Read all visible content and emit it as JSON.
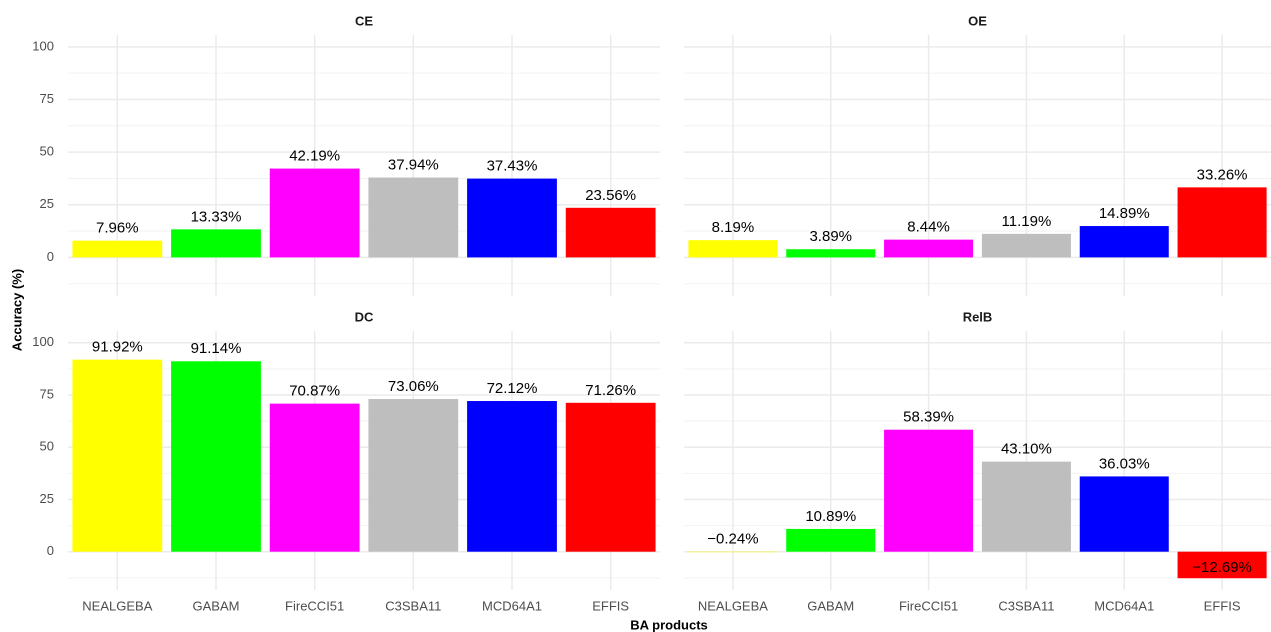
{
  "y_axis_label": "Accuracy (%)",
  "x_axis_label": "BA products",
  "chart_data": [
    {
      "type": "bar",
      "title": "CE",
      "values": [
        7.96,
        13.33,
        42.19,
        37.94,
        37.43,
        23.56
      ],
      "value_labels": [
        "7.96%",
        "13.33%",
        "42.19%",
        "37.94%",
        "37.43%",
        "23.56%"
      ],
      "colors": [
        "#ffff00",
        "#00ff00",
        "#ff00ff",
        "#bebebe",
        "#0000ff",
        "#ff0000"
      ],
      "ylim": [
        -18.33,
        105.63
      ],
      "yticks": [
        0,
        25,
        50,
        75,
        100
      ],
      "minor_yticks": [
        -12.5,
        12.5,
        37.5,
        62.5,
        87.5
      ],
      "grid": true
    },
    {
      "type": "bar",
      "title": "OE",
      "values": [
        8.19,
        3.89,
        8.44,
        11.19,
        14.89,
        33.26
      ],
      "value_labels": [
        "8.19%",
        "3.89%",
        "8.44%",
        "11.19%",
        "14.89%",
        "33.26%"
      ],
      "colors": [
        "#ffff00",
        "#00ff00",
        "#ff00ff",
        "#bebebe",
        "#0000ff",
        "#ff0000"
      ],
      "ylim": [
        -18.33,
        105.63
      ],
      "yticks": [
        0,
        25,
        50,
        75,
        100
      ],
      "minor_yticks": [
        -12.5,
        12.5,
        37.5,
        62.5,
        87.5
      ],
      "grid": true
    },
    {
      "type": "bar",
      "title": "DC",
      "categories": [
        "NEALGEBA",
        "GABAM",
        "FireCCI51",
        "C3SBA11",
        "MCD64A1",
        "EFFIS"
      ],
      "values": [
        91.92,
        91.14,
        70.87,
        73.06,
        72.12,
        71.26
      ],
      "value_labels": [
        "91.92%",
        "91.14%",
        "70.87%",
        "73.06%",
        "72.12%",
        "71.26%"
      ],
      "colors": [
        "#ffff00",
        "#00ff00",
        "#ff00ff",
        "#bebebe",
        "#0000ff",
        "#ff0000"
      ],
      "ylim": [
        -18.33,
        105.63
      ],
      "yticks": [
        0,
        25,
        50,
        75,
        100
      ],
      "minor_yticks": [
        -12.5,
        12.5,
        37.5,
        62.5,
        87.5
      ],
      "grid": true
    },
    {
      "type": "bar",
      "title": "RelB",
      "categories": [
        "NEALGEBA",
        "GABAM",
        "FireCCI51",
        "C3SBA11",
        "MCD64A1",
        "EFFIS"
      ],
      "values": [
        -0.24,
        10.89,
        58.39,
        43.1,
        36.03,
        -12.69
      ],
      "value_labels": [
        "−0.24%",
        "10.89%",
        "58.39%",
        "43.10%",
        "36.03%",
        "−12.69%"
      ],
      "colors": [
        "#ffff00",
        "#00ff00",
        "#ff00ff",
        "#bebebe",
        "#0000ff",
        "#ff0000"
      ],
      "ylim": [
        -18.33,
        105.63
      ],
      "yticks": [
        0,
        25,
        50,
        75,
        100
      ],
      "minor_yticks": [
        -12.5,
        12.5,
        37.5,
        62.5,
        87.5
      ],
      "grid": true
    }
  ]
}
